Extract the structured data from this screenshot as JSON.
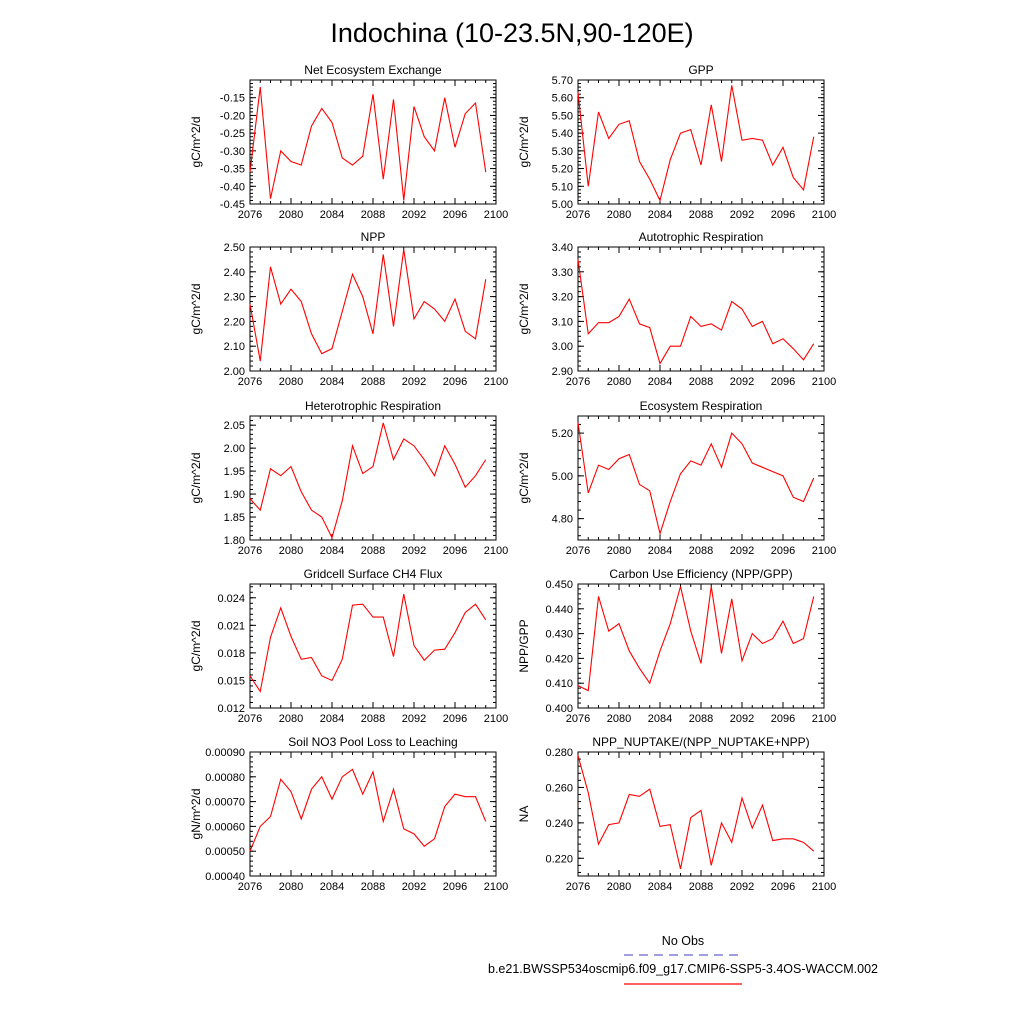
{
  "figure": {
    "title": "Indochina (10-23.5N,90-120E)"
  },
  "legend": {
    "obs_label": "No Obs",
    "obs_color": "#6666cc",
    "obs_style": "dashed",
    "model_label": "b.e21.BWSSP534oscmip6.f09_g17.CMIP6-SSP5-3.4OS-WACCM.002",
    "model_color": "#ff0000",
    "model_style": "solid"
  },
  "chart_data": [
    {
      "type": "line",
      "title": "Net Ecosystem Exchange",
      "xlabel": "",
      "ylabel": "gC/m^2/d",
      "xlim": [
        2076,
        2100
      ],
      "ylim": [
        -0.45,
        -0.1
      ],
      "xticks": [
        "2076",
        "2080",
        "2084",
        "2088",
        "2092",
        "2096",
        "2100"
      ],
      "yticks": [
        "-0.45",
        "-0.40",
        "-0.35",
        "-0.30",
        "-0.25",
        "-0.20",
        "-0.15"
      ],
      "x": [
        2076,
        2077,
        2078,
        2079,
        2080,
        2081,
        2082,
        2083,
        2084,
        2085,
        2086,
        2087,
        2088,
        2089,
        2090,
        2091,
        2092,
        2093,
        2094,
        2095,
        2096,
        2097,
        2098,
        2099
      ],
      "series": [
        {
          "values": [
            -0.36,
            -0.12,
            -0.435,
            -0.3,
            -0.33,
            -0.34,
            -0.23,
            -0.18,
            -0.22,
            -0.32,
            -0.34,
            -0.315,
            -0.14,
            -0.38,
            -0.155,
            -0.44,
            -0.175,
            -0.26,
            -0.3,
            -0.15,
            -0.29,
            -0.195,
            -0.165,
            -0.36
          ]
        }
      ]
    },
    {
      "type": "line",
      "title": "GPP",
      "xlabel": "",
      "ylabel": "gC/m^2/d",
      "xlim": [
        2076,
        2100
      ],
      "ylim": [
        5.0,
        5.7
      ],
      "xticks": [
        "2076",
        "2080",
        "2084",
        "2088",
        "2092",
        "2096",
        "2100"
      ],
      "yticks": [
        "5.00",
        "5.10",
        "5.20",
        "5.30",
        "5.40",
        "5.50",
        "5.60",
        "5.70"
      ],
      "x": [
        2076,
        2077,
        2078,
        2079,
        2080,
        2081,
        2082,
        2083,
        2084,
        2085,
        2086,
        2087,
        2088,
        2089,
        2090,
        2091,
        2092,
        2093,
        2094,
        2095,
        2096,
        2097,
        2098,
        2099
      ],
      "series": [
        {
          "values": [
            5.63,
            5.1,
            5.52,
            5.37,
            5.45,
            5.47,
            5.24,
            5.14,
            5.02,
            5.25,
            5.4,
            5.42,
            5.22,
            5.56,
            5.24,
            5.67,
            5.36,
            5.37,
            5.36,
            5.22,
            5.32,
            5.15,
            5.08,
            5.38
          ]
        }
      ]
    },
    {
      "type": "line",
      "title": "NPP",
      "xlabel": "",
      "ylabel": "gC/m^2/d",
      "xlim": [
        2076,
        2100
      ],
      "ylim": [
        2.0,
        2.5
      ],
      "xticks": [
        "2076",
        "2080",
        "2084",
        "2088",
        "2092",
        "2096",
        "2100"
      ],
      "yticks": [
        "2.00",
        "2.10",
        "2.20",
        "2.30",
        "2.40",
        "2.50"
      ],
      "x": [
        2076,
        2077,
        2078,
        2079,
        2080,
        2081,
        2082,
        2083,
        2084,
        2085,
        2086,
        2087,
        2088,
        2089,
        2090,
        2091,
        2092,
        2093,
        2094,
        2095,
        2096,
        2097,
        2098,
        2099
      ],
      "series": [
        {
          "values": [
            2.27,
            2.04,
            2.42,
            2.27,
            2.33,
            2.28,
            2.15,
            2.07,
            2.09,
            2.24,
            2.39,
            2.3,
            2.15,
            2.47,
            2.18,
            2.49,
            2.21,
            2.28,
            2.25,
            2.2,
            2.29,
            2.16,
            2.13,
            2.37
          ]
        }
      ]
    },
    {
      "type": "line",
      "title": "Autotrophic Respiration",
      "xlabel": "",
      "ylabel": "gC/m^2/d",
      "xlim": [
        2076,
        2100
      ],
      "ylim": [
        2.9,
        3.4
      ],
      "xticks": [
        "2076",
        "2080",
        "2084",
        "2088",
        "2092",
        "2096",
        "2100"
      ],
      "yticks": [
        "2.90",
        "3.00",
        "3.10",
        "3.20",
        "3.30",
        "3.40"
      ],
      "x": [
        2076,
        2077,
        2078,
        2079,
        2080,
        2081,
        2082,
        2083,
        2084,
        2085,
        2086,
        2087,
        2088,
        2089,
        2090,
        2091,
        2092,
        2093,
        2094,
        2095,
        2096,
        2097,
        2098,
        2099
      ],
      "series": [
        {
          "values": [
            3.35,
            3.05,
            3.095,
            3.095,
            3.12,
            3.19,
            3.09,
            3.075,
            2.93,
            3.0,
            3.0,
            3.12,
            3.08,
            3.09,
            3.065,
            3.18,
            3.15,
            3.08,
            3.1,
            3.01,
            3.03,
            2.99,
            2.945,
            3.01
          ]
        }
      ]
    },
    {
      "type": "line",
      "title": "Heterotrophic Respiration",
      "xlabel": "",
      "ylabel": "gC/m^2/d",
      "xlim": [
        2076,
        2100
      ],
      "ylim": [
        1.8,
        2.07
      ],
      "xticks": [
        "2076",
        "2080",
        "2084",
        "2088",
        "2092",
        "2096",
        "2100"
      ],
      "yticks": [
        "1.80",
        "1.85",
        "1.90",
        "1.95",
        "2.00",
        "2.05"
      ],
      "x": [
        2076,
        2077,
        2078,
        2079,
        2080,
        2081,
        2082,
        2083,
        2084,
        2085,
        2086,
        2087,
        2088,
        2089,
        2090,
        2091,
        2092,
        2093,
        2094,
        2095,
        2096,
        2097,
        2098,
        2099
      ],
      "series": [
        {
          "values": [
            1.89,
            1.865,
            1.955,
            1.94,
            1.96,
            1.905,
            1.865,
            1.85,
            1.805,
            1.885,
            2.005,
            1.945,
            1.96,
            2.055,
            1.975,
            2.02,
            2.005,
            1.975,
            1.94,
            2.005,
            1.965,
            1.915,
            1.94,
            1.975
          ]
        }
      ]
    },
    {
      "type": "line",
      "title": "Ecosystem Respiration",
      "xlabel": "",
      "ylabel": "gC/m^2/d",
      "xlim": [
        2076,
        2100
      ],
      "ylim": [
        4.7,
        5.28
      ],
      "xticks": [
        "2076",
        "2080",
        "2084",
        "2088",
        "2092",
        "2096",
        "2100"
      ],
      "yticks": [
        "4.80",
        "5.00",
        "5.20"
      ],
      "x": [
        2076,
        2077,
        2078,
        2079,
        2080,
        2081,
        2082,
        2083,
        2084,
        2085,
        2086,
        2087,
        2088,
        2089,
        2090,
        2091,
        2092,
        2093,
        2094,
        2095,
        2096,
        2097,
        2098,
        2099
      ],
      "series": [
        {
          "values": [
            5.25,
            4.92,
            5.05,
            5.03,
            5.08,
            5.1,
            4.96,
            4.93,
            4.73,
            4.88,
            5.01,
            5.07,
            5.05,
            5.15,
            5.04,
            5.2,
            5.15,
            5.06,
            5.04,
            5.02,
            5.0,
            4.9,
            4.88,
            4.99
          ]
        }
      ]
    },
    {
      "type": "line",
      "title": "Gridcell Surface CH4 Flux",
      "xlabel": "",
      "ylabel": "gC/m^2/d",
      "xlim": [
        2076,
        2100
      ],
      "ylim": [
        0.012,
        0.0255
      ],
      "xticks": [
        "2076",
        "2080",
        "2084",
        "2088",
        "2092",
        "2096",
        "2100"
      ],
      "yticks": [
        "0.012",
        "0.015",
        "0.018",
        "0.021",
        "0.024"
      ],
      "x": [
        2076,
        2077,
        2078,
        2079,
        2080,
        2081,
        2082,
        2083,
        2084,
        2085,
        2086,
        2087,
        2088,
        2089,
        2090,
        2091,
        2092,
        2093,
        2094,
        2095,
        2096,
        2097,
        2098,
        2099
      ],
      "series": [
        {
          "values": [
            0.0155,
            0.0138,
            0.0197,
            0.0229,
            0.0198,
            0.0173,
            0.0175,
            0.0155,
            0.015,
            0.0173,
            0.0232,
            0.0233,
            0.0219,
            0.0219,
            0.0176,
            0.0244,
            0.0188,
            0.0172,
            0.0183,
            0.0184,
            0.0202,
            0.0224,
            0.0233,
            0.0216
          ]
        }
      ]
    },
    {
      "type": "line",
      "title": "Carbon Use Efficiency (NPP/GPP)",
      "xlabel": "",
      "ylabel": "NPP/GPP",
      "xlim": [
        2076,
        2100
      ],
      "ylim": [
        0.4,
        0.45
      ],
      "xticks": [
        "2076",
        "2080",
        "2084",
        "2088",
        "2092",
        "2096",
        "2100"
      ],
      "yticks": [
        "0.400",
        "0.410",
        "0.420",
        "0.430",
        "0.440",
        "0.450"
      ],
      "x": [
        2076,
        2077,
        2078,
        2079,
        2080,
        2081,
        2082,
        2083,
        2084,
        2085,
        2086,
        2087,
        2088,
        2089,
        2090,
        2091,
        2092,
        2093,
        2094,
        2095,
        2096,
        2097,
        2098,
        2099
      ],
      "series": [
        {
          "values": [
            0.409,
            0.407,
            0.445,
            0.431,
            0.434,
            0.423,
            0.416,
            0.41,
            0.423,
            0.434,
            0.449,
            0.431,
            0.418,
            0.449,
            0.422,
            0.444,
            0.419,
            0.43,
            0.426,
            0.428,
            0.435,
            0.426,
            0.428,
            0.445
          ]
        }
      ]
    },
    {
      "type": "line",
      "title": "Soil NO3 Pool Loss to Leaching",
      "xlabel": "",
      "ylabel": "gN/m^2/d",
      "xlim": [
        2076,
        2100
      ],
      "ylim": [
        0.0004,
        0.0009
      ],
      "xticks": [
        "2076",
        "2080",
        "2084",
        "2088",
        "2092",
        "2096",
        "2100"
      ],
      "yticks": [
        "0.00040",
        "0.00050",
        "0.00060",
        "0.00070",
        "0.00080",
        "0.00090"
      ],
      "x": [
        2076,
        2077,
        2078,
        2079,
        2080,
        2081,
        2082,
        2083,
        2084,
        2085,
        2086,
        2087,
        2088,
        2089,
        2090,
        2091,
        2092,
        2093,
        2094,
        2095,
        2096,
        2097,
        2098,
        2099
      ],
      "series": [
        {
          "values": [
            0.0005,
            0.0006,
            0.00064,
            0.00079,
            0.00074,
            0.00063,
            0.00075,
            0.0008,
            0.00071,
            0.0008,
            0.00083,
            0.00073,
            0.00082,
            0.00062,
            0.00075,
            0.00059,
            0.00057,
            0.00052,
            0.00055,
            0.00068,
            0.00073,
            0.00072,
            0.00072,
            0.00062
          ]
        }
      ]
    },
    {
      "type": "line",
      "title": "NPP_NUPTAKE/(NPP_NUPTAKE+NPP)",
      "xlabel": "",
      "ylabel": "NA",
      "xlim": [
        2076,
        2100
      ],
      "ylim": [
        0.21,
        0.28
      ],
      "xticks": [
        "2076",
        "2080",
        "2084",
        "2088",
        "2092",
        "2096",
        "2100"
      ],
      "yticks": [
        "0.220",
        "0.240",
        "0.260",
        "0.280"
      ],
      "x": [
        2076,
        2077,
        2078,
        2079,
        2080,
        2081,
        2082,
        2083,
        2084,
        2085,
        2086,
        2087,
        2088,
        2089,
        2090,
        2091,
        2092,
        2093,
        2094,
        2095,
        2096,
        2097,
        2098,
        2099
      ],
      "series": [
        {
          "values": [
            0.278,
            0.257,
            0.228,
            0.239,
            0.24,
            0.256,
            0.255,
            0.259,
            0.238,
            0.239,
            0.214,
            0.243,
            0.247,
            0.216,
            0.24,
            0.229,
            0.254,
            0.237,
            0.25,
            0.23,
            0.231,
            0.231,
            0.229,
            0.224
          ]
        }
      ]
    }
  ]
}
